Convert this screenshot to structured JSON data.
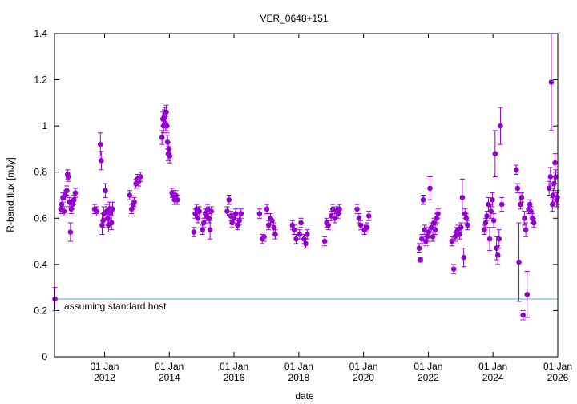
{
  "chart_data": {
    "type": "scatter",
    "title": "VER_0648+151",
    "xlabel": "date",
    "ylabel": "R-band flux [mJy]",
    "xlim": [
      "2010-06-15",
      "2026-01-01"
    ],
    "ylim": [
      0,
      1.4
    ],
    "x_ticks": [
      {
        "date": "2012-01-01",
        "line1": "01 Jan",
        "line2": "2012"
      },
      {
        "date": "2014-01-01",
        "line1": "01 Jan",
        "line2": "2014"
      },
      {
        "date": "2016-01-01",
        "line1": "01 Jan",
        "line2": "2016"
      },
      {
        "date": "2018-01-01",
        "line1": "01 Jan",
        "line2": "2018"
      },
      {
        "date": "2020-01-01",
        "line1": "01 Jan",
        "line2": "2020"
      },
      {
        "date": "2022-01-01",
        "line1": "01 Jan",
        "line2": "2022"
      },
      {
        "date": "2024-01-01",
        "line1": "01 Jan",
        "line2": "2024"
      },
      {
        "date": "2026-01-01",
        "line1": "01 Jan",
        "line2": "2026"
      }
    ],
    "y_ticks": [
      "0",
      "0.2",
      "0.4",
      "0.6",
      "0.8",
      "1",
      "1.2",
      "1.4"
    ],
    "grid": false,
    "colors": {
      "points": "#9400d3",
      "host_line": "#5aa7d6"
    },
    "host_line": {
      "label": "assuming standard host",
      "y": 0.25
    },
    "series": [
      {
        "points": [
          [
            "2010-06-20",
            0.25,
            0.05
          ],
          [
            "2010-08-25",
            0.64,
            0.02
          ],
          [
            "2010-09-05",
            0.66,
            0.02
          ],
          [
            "2010-09-18",
            0.69,
            0.02
          ],
          [
            "2010-10-02",
            0.63,
            0.02
          ],
          [
            "2010-10-15",
            0.7,
            0.02
          ],
          [
            "2010-11-01",
            0.72,
            0.02
          ],
          [
            "2010-11-10",
            0.79,
            0.02
          ],
          [
            "2010-11-15",
            0.78,
            0.02
          ],
          [
            "2010-12-01",
            0.67,
            0.02
          ],
          [
            "2010-12-12",
            0.54,
            0.04
          ],
          [
            "2010-12-20",
            0.64,
            0.02
          ],
          [
            "2011-01-05",
            0.66,
            0.02
          ],
          [
            "2011-01-20",
            0.68,
            0.02
          ],
          [
            "2011-02-05",
            0.71,
            0.02
          ],
          [
            "2011-09-10",
            0.64,
            0.02
          ],
          [
            "2011-10-05",
            0.63,
            0.02
          ],
          [
            "2011-11-15",
            0.92,
            0.05
          ],
          [
            "2011-11-25",
            0.85,
            0.04
          ],
          [
            "2011-12-05",
            0.57,
            0.04
          ],
          [
            "2011-12-15",
            0.59,
            0.03
          ],
          [
            "2011-12-25",
            0.62,
            0.03
          ],
          [
            "2012-01-10",
            0.72,
            0.03
          ],
          [
            "2012-01-25",
            0.63,
            0.03
          ],
          [
            "2012-02-05",
            0.6,
            0.03
          ],
          [
            "2012-02-15",
            0.57,
            0.03
          ],
          [
            "2012-02-25",
            0.64,
            0.03
          ],
          [
            "2012-03-10",
            0.62,
            0.03
          ],
          [
            "2012-03-20",
            0.58,
            0.03
          ],
          [
            "2012-04-01",
            0.64,
            0.03
          ],
          [
            "2012-10-10",
            0.7,
            0.02
          ],
          [
            "2012-11-01",
            0.64,
            0.02
          ],
          [
            "2012-11-20",
            0.66,
            0.02
          ],
          [
            "2012-12-01",
            0.67,
            0.02
          ],
          [
            "2012-12-20",
            0.75,
            0.02
          ],
          [
            "2013-01-05",
            0.77,
            0.02
          ],
          [
            "2013-01-20",
            0.76,
            0.02
          ],
          [
            "2013-02-10",
            0.78,
            0.02
          ],
          [
            "2013-10-10",
            0.95,
            0.03
          ],
          [
            "2013-10-20",
            1.03,
            0.03
          ],
          [
            "2013-10-28",
            1.0,
            0.03
          ],
          [
            "2013-11-05",
            1.04,
            0.03
          ],
          [
            "2013-11-12",
            1.05,
            0.03
          ],
          [
            "2013-11-20",
            1.01,
            0.03
          ],
          [
            "2013-11-28",
            1.06,
            0.03
          ],
          [
            "2013-12-05",
            1.0,
            0.03
          ],
          [
            "2013-12-12",
            0.93,
            0.03
          ],
          [
            "2013-12-20",
            0.88,
            0.03
          ],
          [
            "2013-12-28",
            0.9,
            0.03
          ],
          [
            "2014-01-05",
            0.87,
            0.03
          ],
          [
            "2014-02-01",
            0.71,
            0.02
          ],
          [
            "2014-02-15",
            0.7,
            0.02
          ],
          [
            "2014-03-01",
            0.68,
            0.02
          ],
          [
            "2014-03-15",
            0.7,
            0.02
          ],
          [
            "2014-04-01",
            0.68,
            0.02
          ],
          [
            "2014-10-05",
            0.54,
            0.02
          ],
          [
            "2014-10-20",
            0.62,
            0.02
          ],
          [
            "2014-11-05",
            0.64,
            0.02
          ],
          [
            "2014-11-20",
            0.6,
            0.02
          ],
          [
            "2014-12-05",
            0.63,
            0.02
          ],
          [
            "2015-01-10",
            0.55,
            0.02
          ],
          [
            "2015-01-25",
            0.58,
            0.02
          ],
          [
            "2015-02-10",
            0.62,
            0.02
          ],
          [
            "2015-02-25",
            0.61,
            0.02
          ],
          [
            "2015-03-10",
            0.64,
            0.02
          ],
          [
            "2015-03-25",
            0.6,
            0.02
          ],
          [
            "2015-04-05",
            0.55,
            0.04
          ],
          [
            "2015-04-20",
            0.63,
            0.02
          ],
          [
            "2015-10-15",
            0.63,
            0.02
          ],
          [
            "2015-11-05",
            0.68,
            0.02
          ],
          [
            "2015-11-25",
            0.61,
            0.02
          ],
          [
            "2015-12-10",
            0.58,
            0.02
          ],
          [
            "2016-01-01",
            0.6,
            0.02
          ],
          [
            "2016-01-20",
            0.62,
            0.02
          ],
          [
            "2016-02-10",
            0.57,
            0.02
          ],
          [
            "2016-03-01",
            0.59,
            0.02
          ],
          [
            "2016-03-20",
            0.62,
            0.02
          ],
          [
            "2016-10-15",
            0.62,
            0.02
          ],
          [
            "2016-11-15",
            0.51,
            0.02
          ],
          [
            "2016-12-05",
            0.52,
            0.02
          ],
          [
            "2017-01-05",
            0.64,
            0.02
          ],
          [
            "2017-01-25",
            0.57,
            0.02
          ],
          [
            "2017-02-15",
            0.6,
            0.02
          ],
          [
            "2017-03-05",
            0.59,
            0.02
          ],
          [
            "2017-03-25",
            0.56,
            0.02
          ],
          [
            "2017-04-10",
            0.53,
            0.02
          ],
          [
            "2017-10-20",
            0.57,
            0.02
          ],
          [
            "2017-11-10",
            0.55,
            0.02
          ],
          [
            "2017-12-01",
            0.51,
            0.02
          ],
          [
            "2018-01-10",
            0.53,
            0.02
          ],
          [
            "2018-01-25",
            0.58,
            0.02
          ],
          [
            "2018-03-01",
            0.51,
            0.02
          ],
          [
            "2018-03-20",
            0.49,
            0.02
          ],
          [
            "2018-04-05",
            0.53,
            0.02
          ],
          [
            "2018-10-20",
            0.5,
            0.02
          ],
          [
            "2018-11-10",
            0.58,
            0.02
          ],
          [
            "2018-12-01",
            0.57,
            0.02
          ],
          [
            "2019-01-01",
            0.61,
            0.02
          ],
          [
            "2019-01-20",
            0.64,
            0.02
          ],
          [
            "2019-02-10",
            0.6,
            0.02
          ],
          [
            "2019-03-01",
            0.63,
            0.02
          ],
          [
            "2019-03-20",
            0.62,
            0.02
          ],
          [
            "2019-04-05",
            0.64,
            0.02
          ],
          [
            "2019-10-20",
            0.64,
            0.02
          ],
          [
            "2019-11-10",
            0.6,
            0.02
          ],
          [
            "2019-12-01",
            0.57,
            0.02
          ],
          [
            "2020-01-10",
            0.55,
            0.02
          ],
          [
            "2020-02-10",
            0.56,
            0.02
          ],
          [
            "2020-03-01",
            0.61,
            0.02
          ],
          [
            "2021-09-20",
            0.47,
            0.02
          ],
          [
            "2021-10-05",
            0.42,
            0.01
          ],
          [
            "2021-10-20",
            0.51,
            0.02
          ],
          [
            "2021-11-05",
            0.68,
            0.02
          ],
          [
            "2021-11-20",
            0.55,
            0.02
          ],
          [
            "2021-12-05",
            0.5,
            0.02
          ],
          [
            "2021-12-20",
            0.52,
            0.02
          ],
          [
            "2022-01-05",
            0.54,
            0.02
          ],
          [
            "2022-01-20",
            0.73,
            0.05
          ],
          [
            "2022-02-05",
            0.56,
            0.02
          ],
          [
            "2022-02-20",
            0.52,
            0.02
          ],
          [
            "2022-03-05",
            0.58,
            0.02
          ],
          [
            "2022-03-20",
            0.55,
            0.02
          ],
          [
            "2022-04-05",
            0.6,
            0.02
          ],
          [
            "2022-04-20",
            0.62,
            0.02
          ],
          [
            "2022-09-25",
            0.5,
            0.02
          ],
          [
            "2022-10-15",
            0.38,
            0.02
          ],
          [
            "2022-10-30",
            0.52,
            0.02
          ],
          [
            "2022-11-15",
            0.54,
            0.02
          ],
          [
            "2022-12-01",
            0.55,
            0.02
          ],
          [
            "2022-12-20",
            0.53,
            0.02
          ],
          [
            "2023-01-05",
            0.56,
            0.02
          ],
          [
            "2023-01-20",
            0.69,
            0.08
          ],
          [
            "2023-02-05",
            0.43,
            0.04
          ],
          [
            "2023-02-20",
            0.62,
            0.02
          ],
          [
            "2023-03-05",
            0.6,
            0.02
          ],
          [
            "2023-03-20",
            0.57,
            0.02
          ],
          [
            "2023-09-25",
            0.55,
            0.02
          ],
          [
            "2023-10-10",
            0.58,
            0.02
          ],
          [
            "2023-10-25",
            0.61,
            0.02
          ],
          [
            "2023-11-10",
            0.66,
            0.03
          ],
          [
            "2023-11-25",
            0.51,
            0.05
          ],
          [
            "2023-12-10",
            0.63,
            0.03
          ],
          [
            "2023-12-25",
            0.68,
            0.03
          ],
          [
            "2024-01-10",
            0.59,
            0.03
          ],
          [
            "2024-01-25",
            0.88,
            0.1
          ],
          [
            "2024-02-10",
            0.47,
            0.05
          ],
          [
            "2024-02-25",
            0.44,
            0.04
          ],
          [
            "2024-03-10",
            0.51,
            0.04
          ],
          [
            "2024-03-25",
            1.0,
            0.08
          ],
          [
            "2024-04-10",
            0.66,
            0.03
          ],
          [
            "2024-09-20",
            0.81,
            0.02
          ],
          [
            "2024-10-05",
            0.73,
            0.02
          ],
          [
            "2024-10-20",
            0.41,
            0.17
          ],
          [
            "2024-11-05",
            0.66,
            0.02
          ],
          [
            "2024-11-20",
            0.69,
            0.02
          ],
          [
            "2024-12-05",
            0.18,
            0.02
          ],
          [
            "2024-12-20",
            0.6,
            0.03
          ],
          [
            "2025-01-05",
            0.55,
            0.03
          ],
          [
            "2025-01-20",
            0.27,
            0.1
          ],
          [
            "2025-02-05",
            0.64,
            0.02
          ],
          [
            "2025-02-20",
            0.66,
            0.02
          ],
          [
            "2025-03-05",
            0.63,
            0.02
          ],
          [
            "2025-03-20",
            0.6,
            0.02
          ],
          [
            "2025-04-05",
            0.58,
            0.02
          ],
          [
            "2025-09-25",
            0.73,
            0.03
          ],
          [
            "2025-10-10",
            0.78,
            0.04
          ],
          [
            "2025-10-20",
            1.19,
            0.21
          ],
          [
            "2025-11-01",
            0.66,
            0.03
          ],
          [
            "2025-11-10",
            0.7,
            0.03
          ],
          [
            "2025-11-20",
            0.75,
            0.03
          ],
          [
            "2025-12-01",
            0.84,
            0.04
          ],
          [
            "2025-12-10",
            0.78,
            0.03
          ],
          [
            "2025-12-20",
            0.68,
            0.03
          ],
          [
            "2025-12-28",
            0.69,
            0.03
          ]
        ]
      }
    ]
  }
}
